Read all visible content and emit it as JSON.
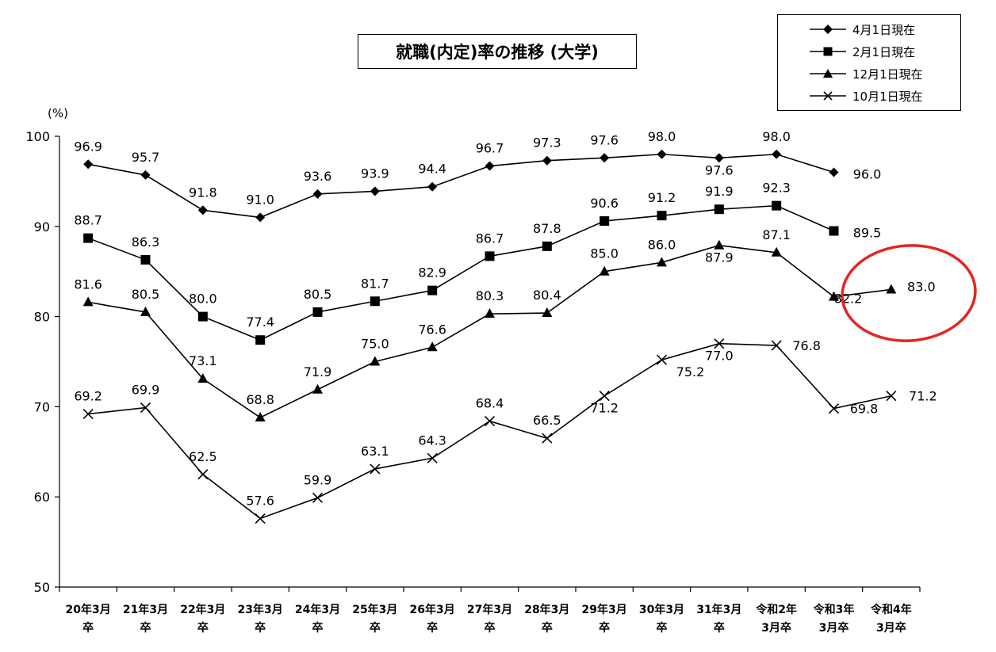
{
  "chart_data": {
    "type": "line",
    "title": "就職(内定)率の推移 (大学)",
    "ylabel": "(%)",
    "ylim": [
      50,
      100
    ],
    "yticks": [
      50,
      60,
      70,
      80,
      90,
      100
    ],
    "grid": false,
    "legend_position": "top-right",
    "categories": [
      [
        "20年3月",
        "卒"
      ],
      [
        "21年3月",
        "卒"
      ],
      [
        "22年3月",
        "卒"
      ],
      [
        "23年3月",
        "卒"
      ],
      [
        "24年3月",
        "卒"
      ],
      [
        "25年3月",
        "卒"
      ],
      [
        "26年3月",
        "卒"
      ],
      [
        "27年3月",
        "卒"
      ],
      [
        "28年3月",
        "卒"
      ],
      [
        "29年3月",
        "卒"
      ],
      [
        "30年3月",
        "卒"
      ],
      [
        "31年3月",
        "卒"
      ],
      [
        "令和2年",
        "3月卒"
      ],
      [
        "令和3年",
        "3月卒"
      ],
      [
        "令和4年",
        "3月卒"
      ]
    ],
    "series": [
      {
        "name": "4月1日現在",
        "marker": "diamond",
        "values": [
          96.9,
          95.7,
          91.8,
          91.0,
          93.6,
          93.9,
          94.4,
          96.7,
          97.3,
          97.6,
          98.0,
          97.6,
          98.0,
          96.0,
          null
        ]
      },
      {
        "name": "2月1日現在",
        "marker": "square",
        "values": [
          88.7,
          86.3,
          80.0,
          77.4,
          80.5,
          81.7,
          82.9,
          86.7,
          87.8,
          90.6,
          91.2,
          91.9,
          92.3,
          89.5,
          null
        ]
      },
      {
        "name": "12月1日現在",
        "marker": "triangle",
        "values": [
          81.6,
          80.5,
          73.1,
          68.8,
          71.9,
          75.0,
          76.6,
          80.3,
          80.4,
          85.0,
          86.0,
          87.9,
          87.1,
          82.2,
          83.0
        ]
      },
      {
        "name": "10月1日現在",
        "marker": "x",
        "values": [
          69.2,
          69.9,
          62.5,
          57.6,
          59.9,
          63.1,
          64.3,
          68.4,
          66.5,
          71.2,
          75.2,
          77.0,
          76.8,
          69.8,
          71.2
        ]
      }
    ],
    "annotations": [
      {
        "type": "ellipse",
        "color": "#e52421",
        "target": "12月1日現在 令和3年3月卒–令和4年3月卒"
      }
    ]
  }
}
